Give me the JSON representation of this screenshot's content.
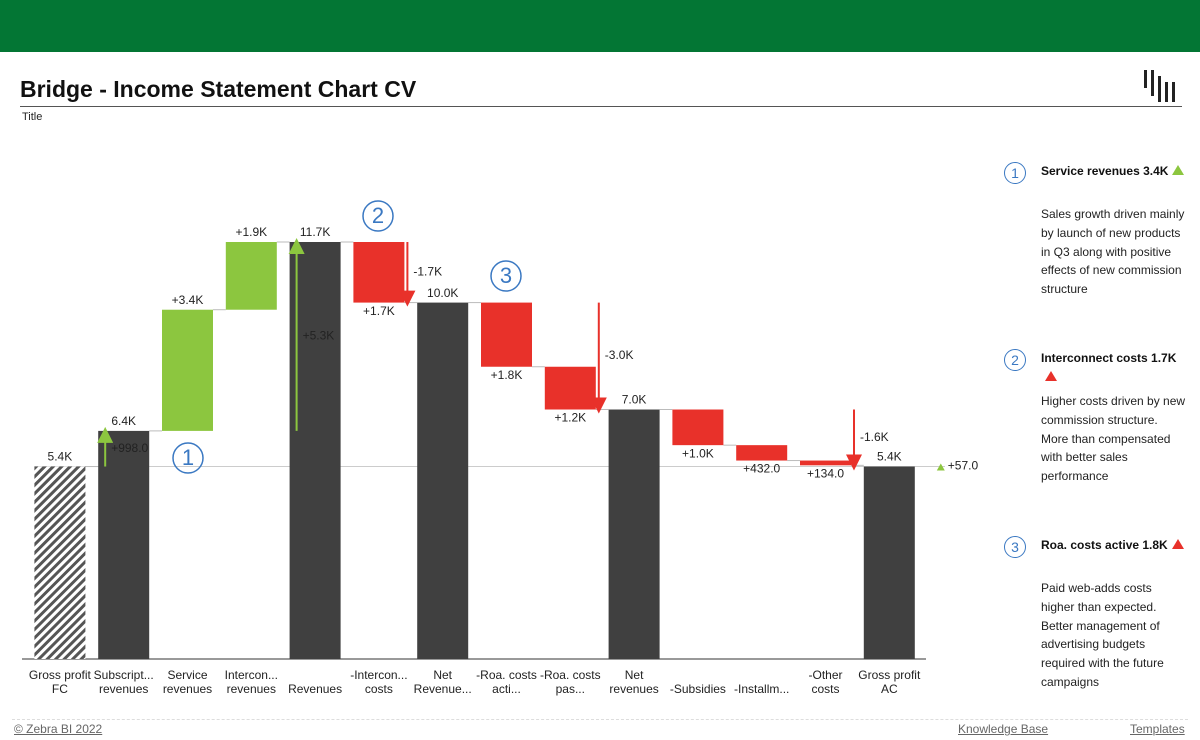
{
  "header": {
    "title": "Bridge - Income Statement Chart CV",
    "subtitle": "Title"
  },
  "chart_data": {
    "type": "waterfall",
    "categories": [
      "Gross profit FC",
      "Subscript... revenues",
      "Service revenues",
      "Intercon... revenues",
      "Revenues",
      "-Intercon... costs",
      "Net Revenue...",
      "-Roa. costs acti...",
      "-Roa. costs pas...",
      "Net revenues",
      "-Subsidies",
      "-Installm...",
      "-Other costs",
      "Gross profit AC"
    ],
    "measures": [
      "reference",
      "total",
      "increase",
      "increase",
      "total",
      "decrease",
      "total",
      "decrease",
      "decrease",
      "total",
      "decrease",
      "decrease",
      "decrease",
      "total"
    ],
    "values": [
      5400,
      6400,
      3400,
      1900,
      11700,
      1700,
      10000,
      1800,
      1200,
      7000,
      1000,
      432,
      134,
      5400
    ],
    "value_labels": [
      "5.4K",
      "6.4K",
      "+3.4K",
      "+1.9K",
      "11.7K",
      "+1.7K",
      "10.0K",
      "+1.8K",
      "+1.2K",
      "7.0K",
      "+1.0K",
      "+432.0",
      "+134.0",
      "5.4K"
    ],
    "deltas": [
      {
        "value": 998,
        "label": "+998.0"
      },
      {
        "value": 5300,
        "label": "+5.3K"
      },
      {
        "value": -1700,
        "label": "-1.7K"
      },
      {
        "value": -3000,
        "label": "-3.0K"
      },
      {
        "value": -1600,
        "label": "-1.6K"
      },
      {
        "value": 57,
        "label": "+57.0"
      }
    ],
    "colors": {
      "total": "#404040",
      "increase": "#8cc63f",
      "decrease": "#e8312a",
      "reference": "#555555"
    }
  },
  "notes": [
    {
      "number": "1",
      "title": "Service revenues 3.4K",
      "color": "#8cc63f",
      "text": "Sales growth driven mainly by launch of new products in Q3 along with positive effects of new commission structure"
    },
    {
      "number": "2",
      "title": "Interconnect costs 1.7K",
      "color": "#e8312a",
      "text": "Higher costs driven by new commission structure. More than compensated with better sales performance"
    },
    {
      "number": "3",
      "title": "Roa. costs active 1.8K",
      "color": "#e8312a",
      "text": "Paid web-adds costs higher than expected. Better management of advertising budgets required with the future campaigns"
    }
  ],
  "footer": {
    "copyright": "© Zebra BI 2022",
    "links": [
      "Knowledge Base",
      "Templates"
    ]
  }
}
